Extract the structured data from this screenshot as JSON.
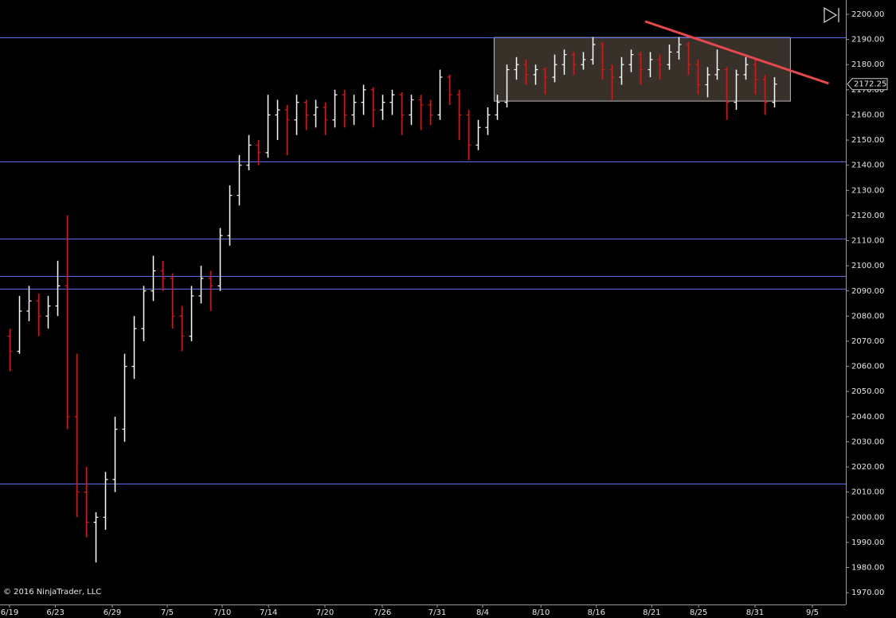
{
  "chart_data": {
    "type": "ohlc",
    "copyright": "© 2016 NinjaTrader, LLC",
    "up_color": "#ffffff",
    "down_color": "#d41b1b",
    "level_color": "#5b6ee8",
    "box_color": "#4a4238",
    "trendline_color": "#e8484a",
    "xlim": [
      0,
      88.5
    ],
    "xticks": [
      {
        "value": 1,
        "label": "6/19"
      },
      {
        "value": 5.8,
        "label": "6/23"
      },
      {
        "value": 11.75,
        "label": "6/29"
      },
      {
        "value": 17.5,
        "label": "7/5"
      },
      {
        "value": 23.25,
        "label": "7/10"
      },
      {
        "value": 28.1,
        "label": "7/14"
      },
      {
        "value": 34,
        "label": "7/20"
      },
      {
        "value": 40,
        "label": "7/26"
      },
      {
        "value": 45.75,
        "label": "7/31"
      },
      {
        "value": 50.5,
        "label": "8/4"
      },
      {
        "value": 56.6,
        "label": "8/10"
      },
      {
        "value": 62.4,
        "label": "8/16"
      },
      {
        "value": 68.2,
        "label": "8/21"
      },
      {
        "value": 73.1,
        "label": "8/25"
      },
      {
        "value": 79,
        "label": "8/31"
      },
      {
        "value": 85,
        "label": "9/5"
      }
    ],
    "ylim": [
      1965.3,
      2205.7
    ],
    "yticks": [
      {
        "value": 1970,
        "label": "1970.00"
      },
      {
        "value": 1980,
        "label": "1980.00"
      },
      {
        "value": 1990,
        "label": "1990.00"
      },
      {
        "value": 2000,
        "label": "2000.00"
      },
      {
        "value": 2010,
        "label": "2010.00"
      },
      {
        "value": 2020,
        "label": "2020.00"
      },
      {
        "value": 2030,
        "label": "2030.00"
      },
      {
        "value": 2040,
        "label": "2040.00"
      },
      {
        "value": 2050,
        "label": "2050.00"
      },
      {
        "value": 2060,
        "label": "2060.00"
      },
      {
        "value": 2070,
        "label": "2070.00"
      },
      {
        "value": 2080,
        "label": "2080.00"
      },
      {
        "value": 2090,
        "label": "2090.00"
      },
      {
        "value": 2100,
        "label": "2100.00"
      },
      {
        "value": 2110,
        "label": "2110.00"
      },
      {
        "value": 2120,
        "label": "2120.00"
      },
      {
        "value": 2130,
        "label": "2130.00"
      },
      {
        "value": 2140,
        "label": "2140.00"
      },
      {
        "value": 2150,
        "label": "2150.00"
      },
      {
        "value": 2160,
        "label": "2160.00"
      },
      {
        "value": 2170,
        "label": "2170.00"
      },
      {
        "value": 2180,
        "label": "2180.00"
      },
      {
        "value": 2190,
        "label": "2190.00"
      },
      {
        "value": 2200,
        "label": "2200.00"
      }
    ],
    "last_price": 2172.25,
    "levels": [
      2190.8,
      2141.5,
      2110.8,
      2095.9,
      2090.9,
      2013.4
    ],
    "box": {
      "x": [
        51.7,
        82.7
      ],
      "y": [
        2165.5,
        2190.8
      ]
    },
    "trendline": {
      "x": [
        67.5,
        86.7
      ],
      "y": [
        2197.2,
        2172.5
      ]
    },
    "x": [
      1,
      2,
      3,
      4,
      5,
      6,
      7,
      8,
      9,
      10,
      11,
      12,
      13,
      14,
      15,
      16,
      17,
      18,
      19,
      20,
      21,
      22,
      23,
      24,
      25,
      26,
      27,
      28,
      29,
      30,
      31,
      32,
      33,
      34,
      35,
      36,
      37,
      38,
      39,
      40,
      41,
      42,
      43,
      44,
      45,
      46,
      47,
      48,
      49,
      50,
      51,
      52,
      53,
      54,
      55,
      56,
      57,
      58,
      59,
      60,
      61,
      62,
      63,
      64,
      65,
      66,
      67,
      68,
      69,
      70,
      71,
      72,
      73,
      74,
      75,
      76,
      77,
      78,
      79,
      80,
      81
    ],
    "ohlc": [
      [
        2072,
        2075,
        2058,
        2066
      ],
      [
        2066,
        2088,
        2065,
        2082
      ],
      [
        2082,
        2092,
        2078,
        2086
      ],
      [
        2086,
        2089,
        2072,
        2080
      ],
      [
        2080,
        2088,
        2075,
        2084
      ],
      [
        2084,
        2102,
        2080,
        2092
      ],
      [
        2092,
        2120,
        2035,
        2040
      ],
      [
        2040,
        2065,
        2000,
        2010
      ],
      [
        2010,
        2020,
        1992,
        1998
      ],
      [
        1998,
        2002,
        1982,
        2000
      ],
      [
        2000,
        2018,
        1995,
        2015
      ],
      [
        2015,
        2040,
        2010,
        2035
      ],
      [
        2035,
        2065,
        2030,
        2060
      ],
      [
        2060,
        2080,
        2055,
        2075
      ],
      [
        2075,
        2092,
        2070,
        2090
      ],
      [
        2090,
        2104,
        2086,
        2098
      ],
      [
        2098,
        2102,
        2090,
        2095
      ],
      [
        2095,
        2097,
        2075,
        2080
      ],
      [
        2080,
        2084,
        2066,
        2072
      ],
      [
        2072,
        2092,
        2070,
        2088
      ],
      [
        2088,
        2100,
        2085,
        2095
      ],
      [
        2095,
        2098,
        2082,
        2092
      ],
      [
        2092,
        2115,
        2090,
        2112
      ],
      [
        2112,
        2132,
        2108,
        2128
      ],
      [
        2128,
        2144,
        2124,
        2140
      ],
      [
        2140,
        2152,
        2138,
        2148
      ],
      [
        2148,
        2150,
        2140,
        2145
      ],
      [
        2145,
        2168,
        2143,
        2160
      ],
      [
        2160,
        2166,
        2150,
        2162
      ],
      [
        2162,
        2164,
        2144,
        2158
      ],
      [
        2158,
        2168,
        2152,
        2165
      ],
      [
        2165,
        2166,
        2154,
        2160
      ],
      [
        2160,
        2166,
        2155,
        2163
      ],
      [
        2163,
        2165,
        2152,
        2158
      ],
      [
        2158,
        2170,
        2155,
        2168
      ],
      [
        2168,
        2170,
        2155,
        2160
      ],
      [
        2160,
        2168,
        2156,
        2165
      ],
      [
        2165,
        2172,
        2160,
        2170
      ],
      [
        2170,
        2171,
        2155,
        2162
      ],
      [
        2162,
        2168,
        2158,
        2165
      ],
      [
        2165,
        2170,
        2160,
        2168
      ],
      [
        2168,
        2169,
        2152,
        2160
      ],
      [
        2160,
        2168,
        2156,
        2166
      ],
      [
        2166,
        2168,
        2154,
        2164
      ],
      [
        2164,
        2166,
        2156,
        2160
      ],
      [
        2160,
        2178,
        2158,
        2175
      ],
      [
        2175,
        2176,
        2164,
        2168
      ],
      [
        2168,
        2170,
        2150,
        2160
      ],
      [
        2160,
        2162,
        2142,
        2148
      ],
      [
        2148,
        2158,
        2146,
        2155
      ],
      [
        2155,
        2163,
        2152,
        2160
      ],
      [
        2160,
        2168,
        2158,
        2165
      ],
      [
        2165,
        2180,
        2163,
        2178
      ],
      [
        2178,
        2183,
        2174,
        2180
      ],
      [
        2180,
        2182,
        2172,
        2176
      ],
      [
        2176,
        2180,
        2172,
        2178
      ],
      [
        2178,
        2179,
        2168,
        2175
      ],
      [
        2175,
        2184,
        2173,
        2180
      ],
      [
        2180,
        2186,
        2176,
        2184
      ],
      [
        2184,
        2185,
        2176,
        2180
      ],
      [
        2180,
        2185,
        2178,
        2182
      ],
      [
        2182,
        2191,
        2180,
        2188
      ],
      [
        2188,
        2189,
        2174,
        2178
      ],
      [
        2178,
        2180,
        2166,
        2175
      ],
      [
        2175,
        2183,
        2172,
        2180
      ],
      [
        2180,
        2186,
        2177,
        2184
      ],
      [
        2184,
        2185,
        2172,
        2178
      ],
      [
        2178,
        2185,
        2175,
        2182
      ],
      [
        2182,
        2184,
        2174,
        2180
      ],
      [
        2180,
        2188,
        2178,
        2185
      ],
      [
        2185,
        2191,
        2182,
        2188
      ],
      [
        2188,
        2189,
        2176,
        2180
      ],
      [
        2180,
        2182,
        2168,
        2172
      ],
      [
        2172,
        2179,
        2167,
        2176
      ],
      [
        2176,
        2186,
        2174,
        2178
      ],
      [
        2178,
        2179,
        2158,
        2165
      ],
      [
        2165,
        2178,
        2162,
        2176
      ],
      [
        2176,
        2183,
        2174,
        2180
      ],
      [
        2180,
        2182,
        2168,
        2174
      ],
      [
        2174,
        2176,
        2160,
        2165
      ],
      [
        2165,
        2175,
        2163,
        2172.25
      ]
    ]
  }
}
